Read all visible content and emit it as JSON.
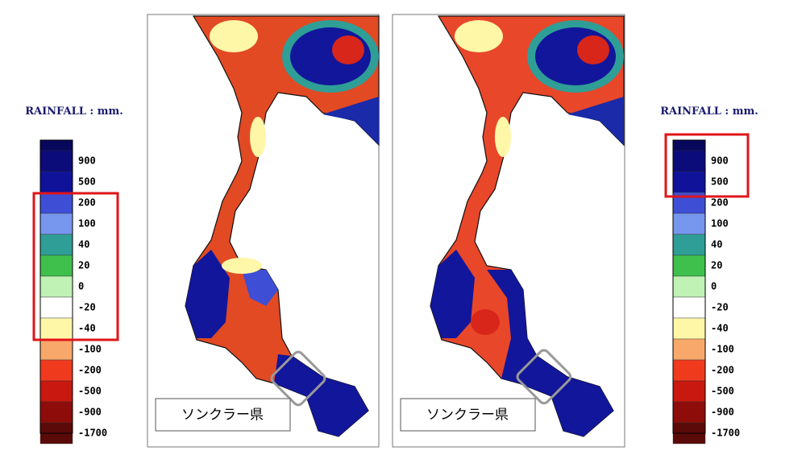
{
  "legends": [
    {
      "title": "RAINFALL : mm.",
      "labels": [
        "900",
        "500",
        "200",
        "100",
        "40",
        "20",
        "0",
        "-20",
        "-40",
        "-100",
        "-200",
        "-500",
        "-900",
        "-1700"
      ],
      "colors": [
        "#0b0b7a",
        "#10129a",
        "#3e4fd6",
        "#7796ee",
        "#2f9e96",
        "#3fbf4c",
        "#bff2b4",
        "#ffffff",
        "#fff7a8",
        "#f7a86a",
        "#ef3a1e",
        "#c81810",
        "#8e0c0a",
        "#5a0a08"
      ]
    },
    {
      "title": "RAINFALL : mm.",
      "labels": [
        "900",
        "500",
        "200",
        "100",
        "40",
        "20",
        "0",
        "-20",
        "-40",
        "-100",
        "-200",
        "-500",
        "-900",
        "-1700"
      ],
      "colors": [
        "#0b0b7a",
        "#10129a",
        "#3e4fd6",
        "#7796ee",
        "#2f9e96",
        "#3fbf4c",
        "#bff2b4",
        "#ffffff",
        "#fff7a8",
        "#f7a86a",
        "#ef3a1e",
        "#c81810",
        "#8e0c0a",
        "#5a0a08"
      ]
    }
  ],
  "maps": [
    {
      "label": "ソンクラー県"
    },
    {
      "label": "ソンクラー県"
    }
  ]
}
